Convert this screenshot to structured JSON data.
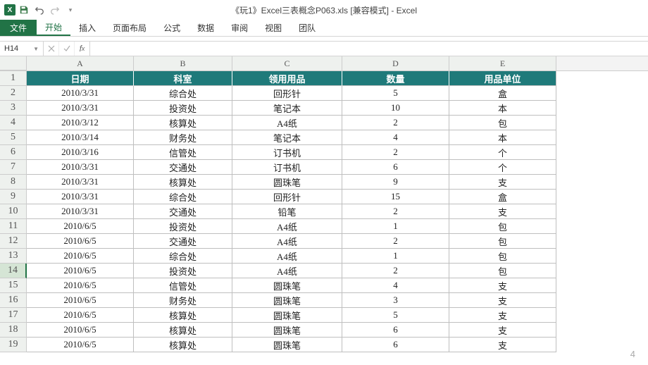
{
  "window": {
    "title": "《玩1》Excel三表概念P063.xls [兼容模式] - Excel"
  },
  "ribbon": {
    "file": "文件",
    "tabs": [
      "开始",
      "插入",
      "页面布局",
      "公式",
      "数据",
      "审阅",
      "视图",
      "团队"
    ],
    "active_index": 0
  },
  "namebox": {
    "value": "H14"
  },
  "formula": {
    "value": ""
  },
  "columns": {
    "letters": [
      "A",
      "B",
      "C",
      "D",
      "E"
    ],
    "widths": [
      152,
      140,
      156,
      152,
      152
    ],
    "row_header_width": 38
  },
  "header_row": {
    "bg": "#1f7a7a",
    "fg": "#ffffff",
    "labels": [
      "日期",
      "科室",
      "领用用品",
      "数量",
      "用品单位"
    ]
  },
  "active_row_index": 14,
  "rows": [
    {
      "n": 1,
      "hdr": true
    },
    {
      "n": 2,
      "c": [
        "2010/3/31",
        "综合处",
        "回形针",
        "5",
        "盒"
      ]
    },
    {
      "n": 3,
      "c": [
        "2010/3/31",
        "投资处",
        "笔记本",
        "10",
        "本"
      ]
    },
    {
      "n": 4,
      "c": [
        "2010/3/12",
        "核算处",
        "A4纸",
        "2",
        "包"
      ]
    },
    {
      "n": 5,
      "c": [
        "2010/3/14",
        "财务处",
        "笔记本",
        "4",
        "本"
      ]
    },
    {
      "n": 6,
      "c": [
        "2010/3/16",
        "信管处",
        "订书机",
        "2",
        "个"
      ]
    },
    {
      "n": 7,
      "c": [
        "2010/3/31",
        "交通处",
        "订书机",
        "6",
        "个"
      ]
    },
    {
      "n": 8,
      "c": [
        "2010/3/31",
        "核算处",
        "圆珠笔",
        "9",
        "支"
      ]
    },
    {
      "n": 9,
      "c": [
        "2010/3/31",
        "综合处",
        "回形针",
        "15",
        "盒"
      ]
    },
    {
      "n": 10,
      "c": [
        "2010/3/31",
        "交通处",
        "铅笔",
        "2",
        "支"
      ]
    },
    {
      "n": 11,
      "c": [
        "2010/6/5",
        "投资处",
        "A4纸",
        "1",
        "包"
      ]
    },
    {
      "n": 12,
      "c": [
        "2010/6/5",
        "交通处",
        "A4纸",
        "2",
        "包"
      ]
    },
    {
      "n": 13,
      "c": [
        "2010/6/5",
        "综合处",
        "A4纸",
        "1",
        "包"
      ]
    },
    {
      "n": 14,
      "c": [
        "2010/6/5",
        "投资处",
        "A4纸",
        "2",
        "包"
      ]
    },
    {
      "n": 15,
      "c": [
        "2010/6/5",
        "信管处",
        "圆珠笔",
        "4",
        "支"
      ]
    },
    {
      "n": 16,
      "c": [
        "2010/6/5",
        "财务处",
        "圆珠笔",
        "3",
        "支"
      ]
    },
    {
      "n": 17,
      "c": [
        "2010/6/5",
        "核算处",
        "圆珠笔",
        "5",
        "支"
      ]
    },
    {
      "n": 18,
      "c": [
        "2010/6/5",
        "核算处",
        "圆珠笔",
        "6",
        "支"
      ]
    },
    {
      "n": 19,
      "c": [
        "2010/6/5",
        "核算处",
        "圆珠笔",
        "6",
        "支"
      ]
    }
  ],
  "page_number": "4"
}
